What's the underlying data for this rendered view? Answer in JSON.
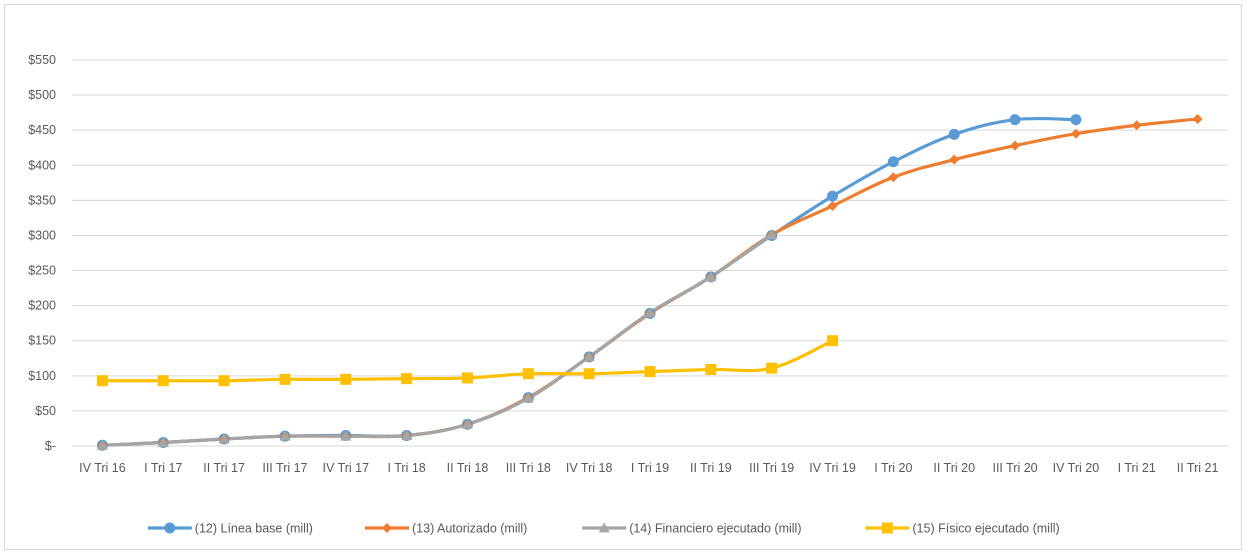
{
  "chart_data": {
    "type": "line",
    "title": "",
    "xlabel": "",
    "ylabel": "",
    "categories": [
      "IV Tri 16",
      "I Tri 17",
      "II Tri 17",
      "III Tri 17",
      "IV Tri 17",
      "I Tri 18",
      "II Tri 18",
      "III Tri 18",
      "IV Tri 18",
      "I Tri 19",
      "II Tri 19",
      "III Tri 19",
      "IV Tri 19",
      "I Tri 20",
      "II Tri 20",
      "III Tri 20",
      "IV Tri 20",
      "I Tri 21",
      "II Tri 21"
    ],
    "ylim": [
      0,
      550
    ],
    "y_ticks": [
      0,
      50,
      100,
      150,
      200,
      250,
      300,
      350,
      400,
      450,
      500,
      550
    ],
    "y_tick_labels": [
      "$-",
      "$50",
      "$100",
      "$150",
      "$200",
      "$250",
      "$300",
      "$350",
      "$400",
      "$450",
      "$500",
      "$550"
    ],
    "grid": true,
    "legend_position": "bottom",
    "series": [
      {
        "name": "(12) Línea base (mill)",
        "color": "#5b9bd5",
        "marker": "circle",
        "values": [
          1,
          5,
          10,
          14,
          15,
          15,
          31,
          69,
          127,
          189,
          241,
          300,
          356,
          405,
          444,
          465,
          465,
          null,
          null
        ]
      },
      {
        "name": "(13) Autorizado (mill)",
        "color": "#ed7d31",
        "marker": "diamond",
        "values": [
          1,
          5,
          10,
          14,
          14,
          15,
          31,
          69,
          127,
          189,
          241,
          301,
          342,
          383,
          408,
          428,
          445,
          457,
          466
        ]
      },
      {
        "name": "(14) Financiero ejecutado (mill)",
        "color": "#a5a5a5",
        "marker": "triangle",
        "values": [
          1,
          5,
          10,
          14,
          14,
          15,
          31,
          68,
          127,
          190,
          241,
          301,
          null,
          null,
          null,
          null,
          null,
          null,
          null
        ]
      },
      {
        "name": "(15) Físico ejecutado (mill)",
        "color": "#ffc000",
        "marker": "square",
        "values": [
          93,
          93,
          93,
          95,
          95,
          96,
          97,
          103,
          103,
          106,
          109,
          111,
          150,
          null,
          null,
          null,
          null,
          null,
          null
        ]
      }
    ]
  }
}
